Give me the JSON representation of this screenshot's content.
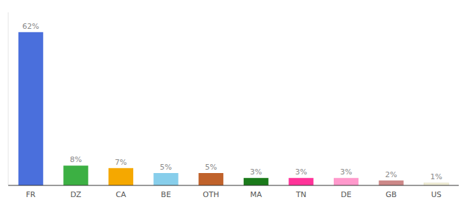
{
  "chart_data": {
    "type": "bar",
    "categories": [
      "FR",
      "DZ",
      "CA",
      "BE",
      "OTH",
      "MA",
      "TN",
      "DE",
      "GB",
      "US"
    ],
    "values": [
      62,
      8,
      7,
      5,
      5,
      3,
      3,
      3,
      2,
      1
    ],
    "value_labels": [
      "62%",
      "8%",
      "7%",
      "5%",
      "5%",
      "3%",
      "3%",
      "3%",
      "2%",
      "1%"
    ],
    "colors": [
      "#4a6fdc",
      "#3cb043",
      "#f5a800",
      "#87ceeb",
      "#c0622b",
      "#1a7a1a",
      "#ff3399",
      "#ff99cc",
      "#cc8888",
      "#f0eed8"
    ],
    "ylim": [
      0,
      70
    ],
    "data_labels": true,
    "tick_labels": "x"
  }
}
